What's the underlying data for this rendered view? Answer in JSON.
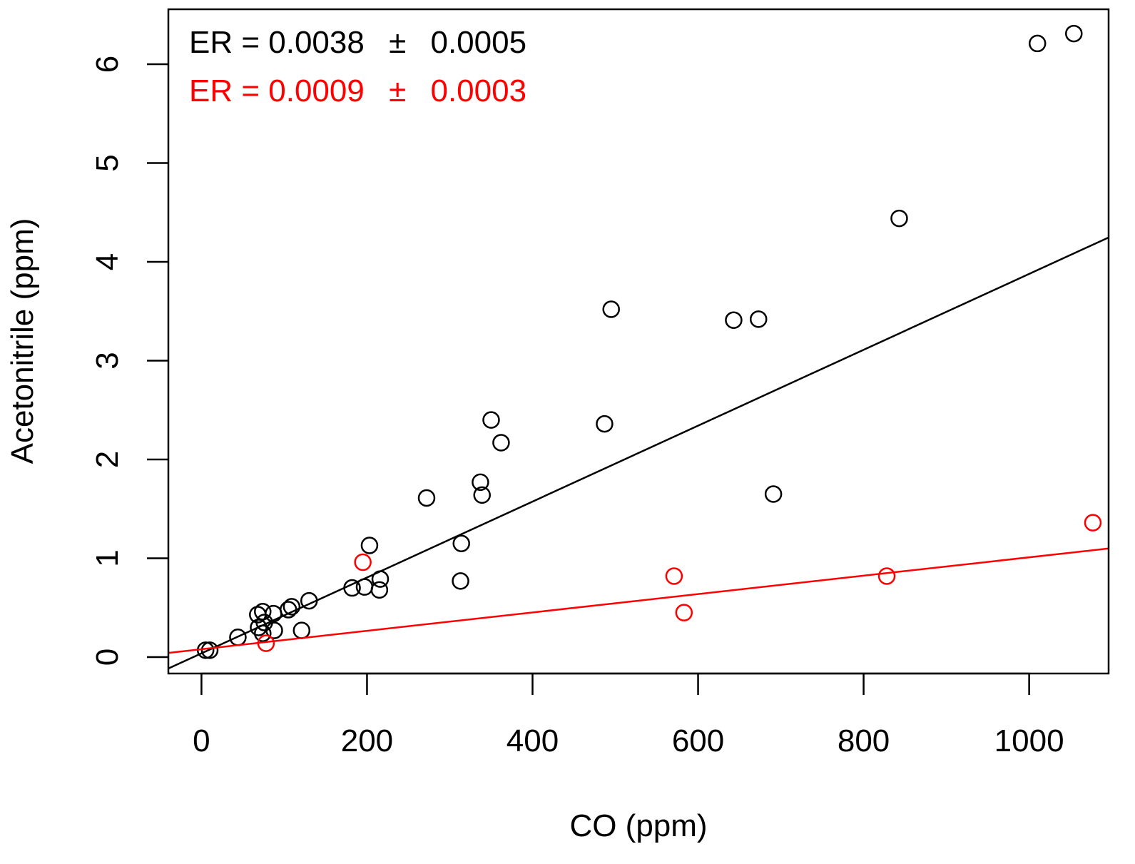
{
  "chart_data": {
    "type": "scatter",
    "title": "",
    "xlabel": "CO (ppm)",
    "ylabel": "Acetonitrile (ppm)",
    "xlim": [
      -40,
      1096
    ],
    "ylim": [
      -0.166,
      6.556
    ],
    "xticks": [
      0,
      200,
      400,
      600,
      800,
      1000
    ],
    "yticks": [
      0,
      1,
      2,
      3,
      4,
      5,
      6
    ],
    "grid": false,
    "annotations": [
      {
        "text_parts": [
          "ER = 0.0038",
          "±",
          "0.0005"
        ],
        "color": "#000000"
      },
      {
        "text_parts": [
          "ER = 0.0009",
          "±",
          "0.0003"
        ],
        "color": "#ff0000"
      }
    ],
    "series": [
      {
        "name": "black",
        "color": "#000000",
        "fit": {
          "slope": 0.00384,
          "intercept": 0.038
        },
        "points": [
          [
            1054,
            6.31
          ],
          [
            1010,
            6.21
          ],
          [
            843,
            4.44
          ],
          [
            495,
            3.52
          ],
          [
            643,
            3.41
          ],
          [
            673,
            3.42
          ],
          [
            487,
            2.36
          ],
          [
            350,
            2.4
          ],
          [
            362,
            2.17
          ],
          [
            272,
            1.61
          ],
          [
            337,
            1.77
          ],
          [
            339,
            1.64
          ],
          [
            691,
            1.65
          ],
          [
            203,
            1.13
          ],
          [
            314,
            1.15
          ],
          [
            313,
            0.77
          ],
          [
            216,
            0.79
          ],
          [
            215,
            0.68
          ],
          [
            182,
            0.7
          ],
          [
            197,
            0.71
          ],
          [
            130,
            0.57
          ],
          [
            109,
            0.51
          ],
          [
            105,
            0.48
          ],
          [
            121,
            0.27
          ],
          [
            87,
            0.44
          ],
          [
            88,
            0.27
          ],
          [
            74,
            0.46
          ],
          [
            68,
            0.43
          ],
          [
            76,
            0.35
          ],
          [
            69,
            0.3
          ],
          [
            74,
            0.24
          ],
          [
            44,
            0.2
          ],
          [
            5,
            0.07
          ],
          [
            10,
            0.07
          ]
        ]
      },
      {
        "name": "red",
        "color": "#ff0000",
        "fit": {
          "slope": 0.00093,
          "intercept": 0.08
        },
        "points": [
          [
            195,
            0.96
          ],
          [
            78,
            0.14
          ],
          [
            571,
            0.82
          ],
          [
            583,
            0.45
          ],
          [
            828,
            0.82
          ],
          [
            1077,
            1.36
          ]
        ]
      }
    ]
  }
}
